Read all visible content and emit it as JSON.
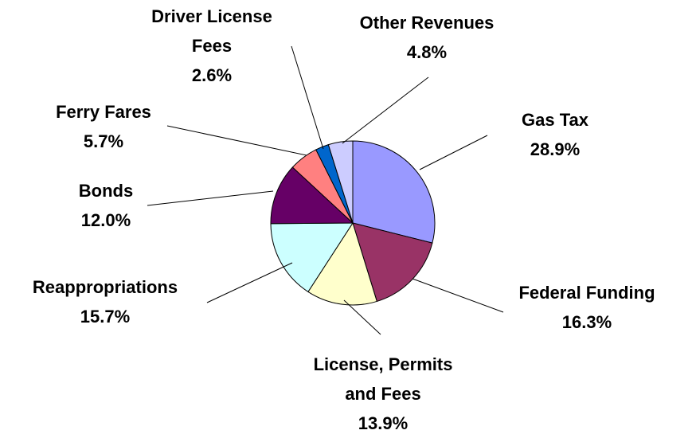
{
  "chart_data": {
    "type": "pie",
    "categories": [
      "Gas Tax",
      "Federal Funding",
      "License, Permits and Fees",
      "Reappropriations",
      "Bonds",
      "Ferry Fares",
      "Driver License Fees",
      "Other Revenues"
    ],
    "values": [
      28.9,
      16.3,
      13.9,
      15.7,
      12.0,
      5.7,
      2.6,
      4.8
    ],
    "value_labels": [
      "28.9%",
      "16.3%",
      "13.9%",
      "15.7%",
      "12.0%",
      "5.7%",
      "2.6%",
      "4.8%"
    ],
    "colors": [
      "#9999ff",
      "#993366",
      "#ffffcc",
      "#ccffff",
      "#660066",
      "#ff8080",
      "#0066cc",
      "#ccccff"
    ]
  }
}
